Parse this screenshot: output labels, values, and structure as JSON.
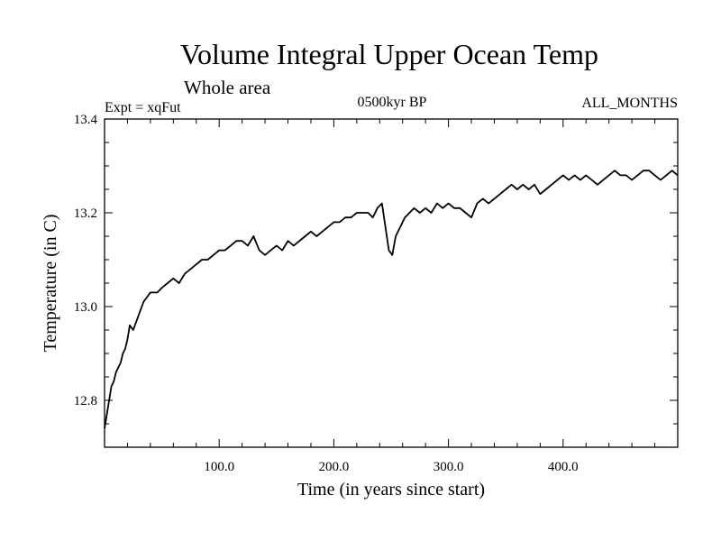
{
  "chart_data": {
    "type": "line",
    "title": "Volume Integral Upper Ocean Temp",
    "subtitle": "Whole area",
    "annotations": {
      "left": "Expt = xqFut",
      "center": "0500kyr BP",
      "right": "ALL_MONTHS"
    },
    "xlabel": "Time (in years since start)",
    "ylabel": "Temperature (in C)",
    "xlim": [
      0,
      500
    ],
    "ylim": [
      12.7,
      13.4
    ],
    "x_ticks": [
      100,
      200,
      300,
      400
    ],
    "x_tick_labels": [
      "100.0",
      "200.0",
      "300.0",
      "400.0"
    ],
    "y_ticks": [
      12.8,
      13.0,
      13.2,
      13.4
    ],
    "y_tick_labels": [
      "12.8",
      "13.0",
      "13.2",
      "13.4"
    ],
    "grid": false,
    "color": "#000000",
    "series": [
      {
        "name": "Temperature",
        "x": [
          0,
          2,
          4,
          6,
          8,
          10,
          12,
          14,
          16,
          18,
          20,
          22,
          25,
          28,
          31,
          34,
          37,
          40,
          43,
          46,
          50,
          55,
          60,
          65,
          70,
          75,
          80,
          85,
          90,
          95,
          100,
          105,
          110,
          115,
          120,
          125,
          130,
          135,
          140,
          145,
          150,
          155,
          160,
          165,
          170,
          175,
          180,
          185,
          190,
          195,
          200,
          205,
          210,
          215,
          220,
          225,
          230,
          234,
          238,
          242,
          245,
          248,
          251,
          254,
          258,
          262,
          266,
          270,
          275,
          280,
          285,
          290,
          295,
          300,
          305,
          310,
          315,
          320,
          325,
          330,
          335,
          340,
          345,
          350,
          355,
          360,
          365,
          370,
          375,
          380,
          385,
          390,
          395,
          400,
          405,
          410,
          415,
          420,
          425,
          430,
          435,
          440,
          445,
          450,
          455,
          460,
          465,
          470,
          475,
          480,
          485,
          490,
          495,
          500
        ],
        "values": [
          12.74,
          12.77,
          12.8,
          12.83,
          12.84,
          12.86,
          12.87,
          12.88,
          12.9,
          12.91,
          12.93,
          12.96,
          12.95,
          12.97,
          12.99,
          13.01,
          13.02,
          13.03,
          13.03,
          13.03,
          13.04,
          13.05,
          13.06,
          13.05,
          13.07,
          13.08,
          13.09,
          13.1,
          13.1,
          13.11,
          13.12,
          13.12,
          13.13,
          13.14,
          13.14,
          13.13,
          13.15,
          13.12,
          13.11,
          13.12,
          13.13,
          13.12,
          13.14,
          13.13,
          13.14,
          13.15,
          13.16,
          13.15,
          13.16,
          13.17,
          13.18,
          13.18,
          13.19,
          13.19,
          13.2,
          13.2,
          13.2,
          13.19,
          13.21,
          13.22,
          13.17,
          13.12,
          13.11,
          13.15,
          13.17,
          13.19,
          13.2,
          13.21,
          13.2,
          13.21,
          13.2,
          13.22,
          13.21,
          13.22,
          13.21,
          13.21,
          13.2,
          13.19,
          13.22,
          13.23,
          13.22,
          13.23,
          13.24,
          13.25,
          13.26,
          13.25,
          13.26,
          13.25,
          13.26,
          13.24,
          13.25,
          13.26,
          13.27,
          13.28,
          13.27,
          13.28,
          13.27,
          13.28,
          13.27,
          13.26,
          13.27,
          13.28,
          13.29,
          13.28,
          13.28,
          13.27,
          13.28,
          13.29,
          13.29,
          13.28,
          13.27,
          13.28,
          13.29,
          13.28
        ]
      }
    ]
  }
}
